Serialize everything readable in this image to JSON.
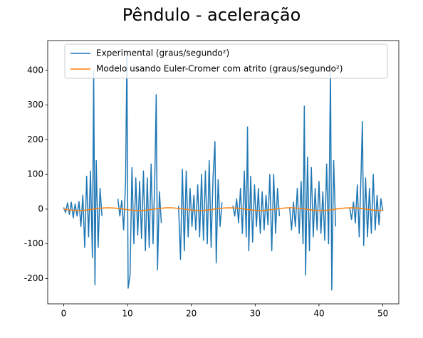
{
  "chart_data": {
    "type": "line",
    "title": "Pêndulo - aceleração",
    "xlim": [
      -2.5,
      52.5
    ],
    "xticks": [
      0,
      10,
      20,
      30,
      40,
      50
    ],
    "ylim": [
      -273,
      486
    ],
    "yticks": [
      -200,
      -100,
      0,
      100,
      200,
      300,
      400
    ],
    "legend": "upper center",
    "grid": false,
    "series": [
      {
        "name": "Experimental (graus/segundo²)",
        "color": "#1f77b4",
        "x": [
          0,
          0.3,
          0.6,
          0.9,
          1.2,
          1.5,
          1.8,
          2.1,
          2.4,
          2.7,
          3.0,
          3.3,
          3.6,
          3.9,
          4.2,
          4.5,
          4.7,
          4.9,
          5.1,
          5.4,
          5.7,
          6.0,
          6.5,
          8.5,
          8.8,
          9.1,
          9.4,
          9.7,
          9.9,
          10.1,
          10.4,
          10.7,
          11.0,
          11.3,
          11.6,
          11.9,
          12.2,
          12.5,
          12.8,
          13.1,
          13.4,
          13.7,
          14.0,
          14.3,
          14.5,
          14.7,
          15.0,
          15.3,
          16.0,
          18.0,
          18.3,
          18.6,
          18.9,
          19.2,
          19.5,
          19.8,
          20.1,
          20.4,
          20.7,
          21.0,
          21.3,
          21.6,
          21.9,
          22.2,
          22.5,
          22.8,
          23.1,
          23.4,
          23.7,
          23.9,
          24.2,
          24.5,
          24.8,
          25.5,
          26.5,
          26.8,
          27.1,
          27.4,
          27.7,
          28.0,
          28.3,
          28.6,
          28.8,
          29.0,
          29.3,
          29.6,
          29.9,
          30.2,
          30.5,
          30.8,
          31.1,
          31.4,
          31.7,
          32.0,
          32.3,
          32.6,
          32.9,
          33.2,
          33.5,
          33.8,
          34.3,
          35.4,
          35.7,
          36.0,
          36.3,
          36.6,
          36.9,
          37.2,
          37.5,
          37.7,
          37.9,
          38.2,
          38.5,
          38.8,
          39.1,
          39.4,
          39.7,
          40.0,
          40.3,
          40.6,
          40.9,
          41.2,
          41.5,
          41.8,
          42.0,
          42.3,
          42.6,
          43.3,
          44.8,
          45.1,
          45.4,
          45.7,
          46.0,
          46.3,
          46.6,
          46.8,
          47.0,
          47.3,
          47.6,
          47.9,
          48.2,
          48.5,
          48.8,
          49.1,
          49.4,
          49.7,
          50.0
        ],
        "values": [
          5,
          -10,
          18,
          -15,
          20,
          -25,
          15,
          -20,
          22,
          -50,
          40,
          -110,
          95,
          -80,
          110,
          -140,
          400,
          -218,
          140,
          -110,
          60,
          -20,
          null,
          30,
          -20,
          25,
          -60,
          80,
          440,
          -228,
          -190,
          120,
          -100,
          90,
          -75,
          80,
          -85,
          110,
          -120,
          90,
          -110,
          130,
          -100,
          110,
          330,
          -175,
          50,
          -40,
          null,
          10,
          -145,
          115,
          -120,
          110,
          -80,
          60,
          -50,
          40,
          -60,
          70,
          -80,
          100,
          -90,
          110,
          -100,
          140,
          -110,
          90,
          195,
          -155,
          85,
          -50,
          20,
          null,
          10,
          -20,
          30,
          -40,
          60,
          -70,
          110,
          -80,
          237,
          -120,
          95,
          -95,
          70,
          -50,
          60,
          -70,
          50,
          -60,
          40,
          -45,
          100,
          -120,
          100,
          -70,
          60,
          -20,
          null,
          5,
          -60,
          20,
          -50,
          60,
          -70,
          80,
          -100,
          297,
          -190,
          150,
          -120,
          120,
          -80,
          60,
          -60,
          80,
          -70,
          50,
          -90,
          130,
          -100,
          400,
          -233,
          140,
          -50,
          null,
          5,
          -30,
          20,
          -40,
          70,
          -80,
          110,
          253,
          -105,
          90,
          -80,
          60,
          -70,
          100,
          -60,
          40,
          -45,
          30,
          -5
        ]
      },
      {
        "name": "Modelo usando Euler-Cromer com atrito (graus/segundo²)",
        "color": "#ff7f0e",
        "x": [
          0,
          1,
          2,
          3,
          4,
          5,
          6,
          7,
          8,
          9,
          10,
          11,
          12,
          13,
          14,
          15,
          16,
          17,
          18,
          19,
          20,
          21,
          22,
          23,
          24,
          25,
          26,
          27,
          28,
          29,
          30,
          31,
          32,
          33,
          34,
          35,
          36,
          37,
          38,
          39,
          40,
          41,
          42,
          43,
          44,
          45,
          46,
          47,
          48,
          49,
          50
        ],
        "values": [
          -0.3,
          -2.7,
          -4.0,
          -3.5,
          -1.6,
          1.0,
          3.2,
          4.0,
          3.2,
          1.0,
          -1.6,
          -3.5,
          -4.0,
          -2.7,
          -0.3,
          2.2,
          3.8,
          3.8,
          2.2,
          -0.3,
          -2.7,
          -4.0,
          -3.5,
          -1.6,
          1.0,
          3.2,
          4.0,
          3.2,
          1.0,
          -1.6,
          -3.5,
          -4.0,
          -2.7,
          -0.3,
          2.2,
          3.8,
          3.8,
          2.2,
          -0.3,
          -2.7,
          -4.0,
          -3.5,
          -1.6,
          1.0,
          3.2,
          4.0,
          3.2,
          1.0,
          -1.6,
          -3.5,
          -4.0
        ]
      }
    ]
  }
}
